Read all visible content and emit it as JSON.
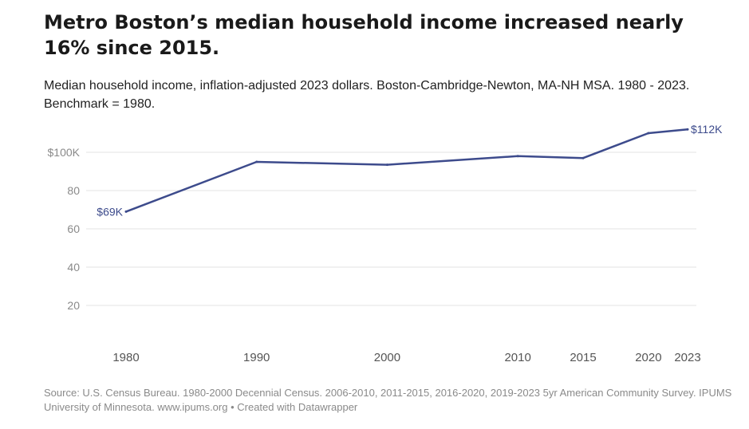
{
  "title": "Metro Boston’s median household income increased nearly 16% since 2015.",
  "subtitle": "Median household income, inflation-adjusted 2023 dollars. Boston-Cambridge-Newton, MA-NH MSA. 1980 - 2023. Benchmark = 1980.",
  "source": "Source: U.S. Census Bureau. 1980-2000 Decennial Census. 2006-2010, 2011-2015, 2016-2020, 2019-2023 5yr American Community Survey. IPUMS University of Minnesota. www.ipums.org • Created with Datawrapper",
  "colors": {
    "line": "#3d4b8c",
    "grid": "#e3e3e3",
    "tick_text": "#8a8a8a",
    "axis_label_text": "#555555"
  },
  "chart_data": {
    "type": "line",
    "series": [
      {
        "name": "Median household income",
        "x": [
          1980,
          1990,
          2000,
          2010,
          2015,
          2020,
          2023
        ],
        "values": [
          69,
          95,
          93.5,
          98,
          97,
          110,
          112
        ]
      }
    ],
    "ylim": [
      10,
      120
    ],
    "xlim": [
      1980,
      2023
    ],
    "y_ticks": [
      {
        "value": 100,
        "label": "$100K"
      },
      {
        "value": 80,
        "label": "80"
      },
      {
        "value": 60,
        "label": "60"
      },
      {
        "value": 40,
        "label": "40"
      },
      {
        "value": 20,
        "label": "20"
      }
    ],
    "x_ticks": [
      {
        "value": 1980,
        "label": "1980"
      },
      {
        "value": 1990,
        "label": "1990"
      },
      {
        "value": 2000,
        "label": "2000"
      },
      {
        "value": 2010,
        "label": "2010"
      },
      {
        "value": 2015,
        "label": "2015"
      },
      {
        "value": 2020,
        "label": "2020"
      },
      {
        "value": 2023,
        "label": "2023"
      }
    ],
    "annotations": [
      {
        "x": 1980,
        "value": 69,
        "label": "$69K",
        "side": "left"
      },
      {
        "x": 2023,
        "value": 112,
        "label": "$112K",
        "side": "right"
      }
    ],
    "grid": true,
    "xlabel": "",
    "ylabel": ""
  }
}
